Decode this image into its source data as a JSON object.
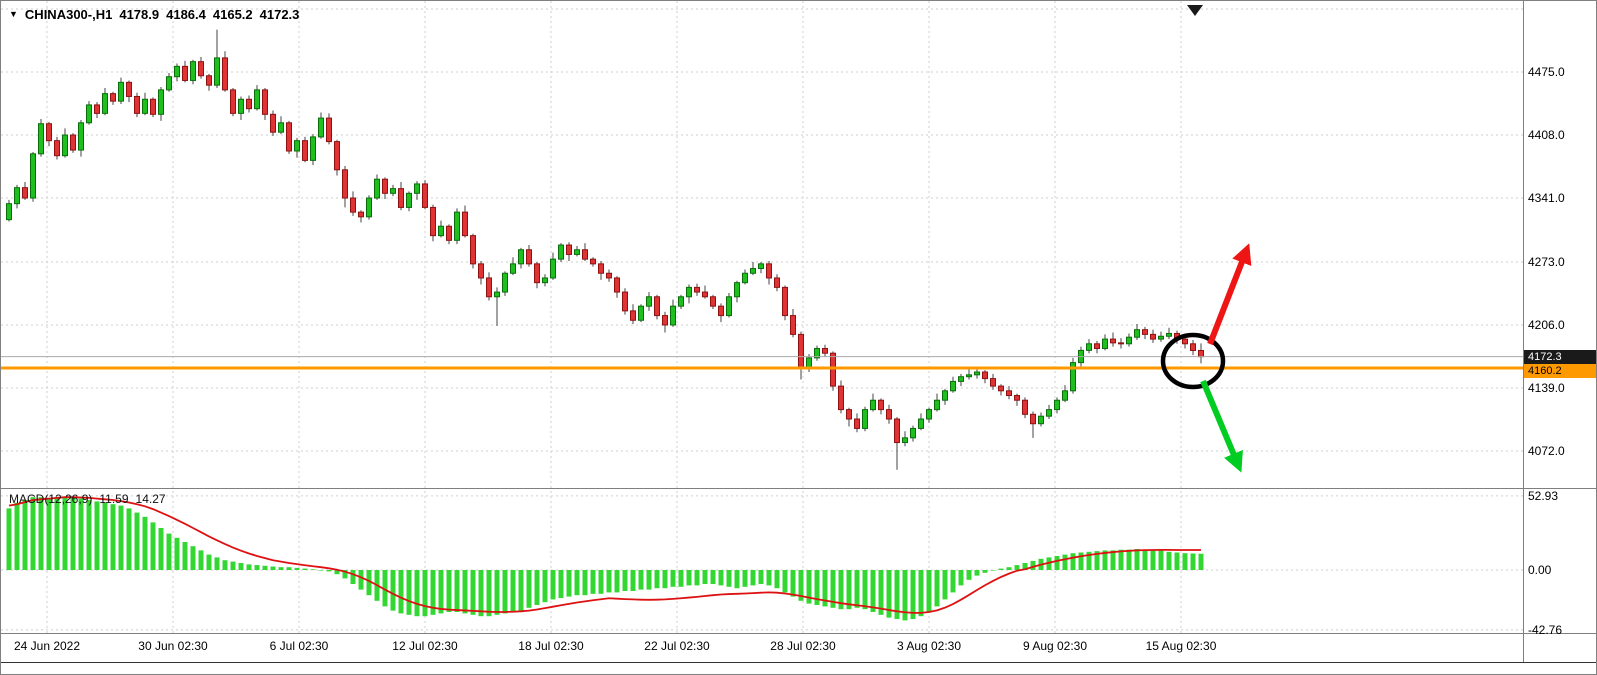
{
  "window": {
    "background": "#ffffff"
  },
  "header": {
    "menu_icon": "▼",
    "symbol": "CHINA300-,H1",
    "open": "4178.9",
    "high": "4186.4",
    "low": "4165.2",
    "close": "4172.3"
  },
  "macd_panel": {
    "label": "MACD(12,26,9)",
    "macd_value": "11.59",
    "signal_value": "14.27"
  },
  "colors": {
    "bull": "#0a6e0a",
    "bull_fill": "#1fbf1f",
    "bear": "#8f1111",
    "bear_fill": "#e03333",
    "wick": "#444444",
    "hist": "#33d633",
    "signal": "#dd1111",
    "grid": "#cfcfcf",
    "separator": "#7f7f7f",
    "orange_line": "#ff9900",
    "bid_line": "#aaaaaa",
    "badge_bg": "#1a1a1a",
    "badge_text": "#ffffff",
    "orange_badge_text": "#000000",
    "circle": "#000000",
    "arrow_up": "#ee1515",
    "arrow_down": "#00cc22"
  },
  "chart_data": {
    "type": "candlestick",
    "symbol": "CHINA300-",
    "timeframe": "H1",
    "last_ohlc": {
      "open": 4178.9,
      "high": 4186.4,
      "low": 4165.2,
      "close": 4172.3
    },
    "y_axis": {
      "tick_labels": [
        "4475.0",
        "4408.0",
        "4341.0",
        "4273.0",
        "4206.0",
        "4139.0",
        "4072.0"
      ],
      "ticks": [
        4475,
        4408,
        4341,
        4273,
        4206,
        4139,
        4072
      ],
      "unlabeled_grid": [
        4542
      ],
      "current_price": 4172.3,
      "current_price_label": "4172.3",
      "orange_level": 4160.2,
      "orange_level_label": "4160.2"
    },
    "x_axis": {
      "ticks": [
        "24 Jun 2022",
        "30 Jun 02:30",
        "6 Jul 02:30",
        "12 Jul 02:30",
        "18 Jul 02:30",
        "22 Jul 02:30",
        "28 Jul 02:30",
        "3 Aug 02:30",
        "9 Aug 02:30",
        "15 Aug 02:30"
      ]
    },
    "candles": [
      [
        4318,
        4339,
        4316,
        4335
      ],
      [
        4335,
        4355,
        4330,
        4352
      ],
      [
        4352,
        4358,
        4339,
        4341
      ],
      [
        4341,
        4390,
        4337,
        4388
      ],
      [
        4388,
        4425,
        4385,
        4420
      ],
      [
        4420,
        4422,
        4396,
        4402
      ],
      [
        4402,
        4406,
        4382,
        4386
      ],
      [
        4386,
        4415,
        4384,
        4408
      ],
      [
        4408,
        4410,
        4389,
        4392
      ],
      [
        4392,
        4424,
        4385,
        4421
      ],
      [
        4421,
        4444,
        4419,
        4440
      ],
      [
        4440,
        4443,
        4426,
        4431
      ],
      [
        4431,
        4458,
        4429,
        4452
      ],
      [
        4452,
        4454,
        4440,
        4444
      ],
      [
        4444,
        4469,
        4441,
        4464
      ],
      [
        4464,
        4466,
        4443,
        4449
      ],
      [
        4449,
        4453,
        4427,
        4431
      ],
      [
        4431,
        4453,
        4429,
        4446
      ],
      [
        4446,
        4448,
        4427,
        4430
      ],
      [
        4430,
        4459,
        4423,
        4456
      ],
      [
        4456,
        4474,
        4454,
        4470
      ],
      [
        4470,
        4484,
        4465,
        4481
      ],
      [
        4481,
        4487,
        4464,
        4466
      ],
      [
        4466,
        4488,
        4462,
        4486
      ],
      [
        4486,
        4491,
        4468,
        4471
      ],
      [
        4471,
        4473,
        4455,
        4461
      ],
      [
        4461,
        4520,
        4458,
        4490
      ],
      [
        4490,
        4497,
        4454,
        4456
      ],
      [
        4456,
        4458,
        4428,
        4431
      ],
      [
        4431,
        4449,
        4424,
        4446
      ],
      [
        4446,
        4450,
        4432,
        4436
      ],
      [
        4436,
        4461,
        4434,
        4456
      ],
      [
        4456,
        4458,
        4424,
        4430
      ],
      [
        4430,
        4434,
        4407,
        4411
      ],
      [
        4411,
        4428,
        4409,
        4421
      ],
      [
        4421,
        4423,
        4388,
        4391
      ],
      [
        4391,
        4405,
        4384,
        4402
      ],
      [
        4402,
        4406,
        4379,
        4381
      ],
      [
        4381,
        4409,
        4376,
        4406
      ],
      [
        4406,
        4432,
        4404,
        4426
      ],
      [
        4426,
        4431,
        4398,
        4401
      ],
      [
        4401,
        4403,
        4365,
        4371
      ],
      [
        4371,
        4375,
        4331,
        4341
      ],
      [
        4341,
        4348,
        4322,
        4326
      ],
      [
        4326,
        4328,
        4315,
        4321
      ],
      [
        4321,
        4344,
        4318,
        4341
      ],
      [
        4341,
        4366,
        4339,
        4361
      ],
      [
        4361,
        4363,
        4340,
        4346
      ],
      [
        4346,
        4355,
        4343,
        4351
      ],
      [
        4351,
        4358,
        4328,
        4331
      ],
      [
        4331,
        4348,
        4327,
        4346
      ],
      [
        4346,
        4359,
        4339,
        4356
      ],
      [
        4356,
        4360,
        4329,
        4331
      ],
      [
        4331,
        4334,
        4295,
        4301
      ],
      [
        4301,
        4317,
        4299,
        4311
      ],
      [
        4311,
        4313,
        4292,
        4296
      ],
      [
        4296,
        4330,
        4292,
        4326
      ],
      [
        4326,
        4333,
        4299,
        4301
      ],
      [
        4301,
        4303,
        4266,
        4271
      ],
      [
        4271,
        4274,
        4249,
        4256
      ],
      [
        4256,
        4262,
        4232,
        4236
      ],
      [
        4236,
        4246,
        4205,
        4241
      ],
      [
        4241,
        4263,
        4237,
        4261
      ],
      [
        4261,
        4278,
        4259,
        4271
      ],
      [
        4271,
        4288,
        4266,
        4286
      ],
      [
        4286,
        4291,
        4268,
        4271
      ],
      [
        4271,
        4273,
        4245,
        4251
      ],
      [
        4251,
        4260,
        4247,
        4256
      ],
      [
        4256,
        4283,
        4254,
        4276
      ],
      [
        4276,
        4293,
        4273,
        4291
      ],
      [
        4291,
        4294,
        4274,
        4281
      ],
      [
        4281,
        4290,
        4279,
        4286
      ],
      [
        4286,
        4293,
        4274,
        4276
      ],
      [
        4276,
        4278,
        4268,
        4271
      ],
      [
        4271,
        4274,
        4254,
        4261
      ],
      [
        4261,
        4265,
        4252,
        4256
      ],
      [
        4256,
        4258,
        4235,
        4241
      ],
      [
        4241,
        4245,
        4217,
        4221
      ],
      [
        4221,
        4228,
        4207,
        4211
      ],
      [
        4211,
        4228,
        4209,
        4226
      ],
      [
        4226,
        4241,
        4221,
        4236
      ],
      [
        4236,
        4238,
        4212,
        4216
      ],
      [
        4216,
        4220,
        4198,
        4206
      ],
      [
        4206,
        4233,
        4204,
        4226
      ],
      [
        4226,
        4238,
        4223,
        4236
      ],
      [
        4236,
        4249,
        4229,
        4246
      ],
      [
        4246,
        4250,
        4237,
        4241
      ],
      [
        4241,
        4248,
        4234,
        4236
      ],
      [
        4236,
        4238,
        4223,
        4226
      ],
      [
        4226,
        4229,
        4209,
        4216
      ],
      [
        4216,
        4240,
        4214,
        4236
      ],
      [
        4236,
        4253,
        4230,
        4251
      ],
      [
        4251,
        4265,
        4249,
        4261
      ],
      [
        4261,
        4273,
        4259,
        4266
      ],
      [
        4266,
        4273,
        4261,
        4271
      ],
      [
        4271,
        4274,
        4249,
        4256
      ],
      [
        4256,
        4260,
        4242,
        4246
      ],
      [
        4246,
        4248,
        4211,
        4216
      ],
      [
        4216,
        4223,
        4193,
        4196
      ],
      [
        4196,
        4199,
        4148,
        4161
      ],
      [
        4161,
        4175,
        4156,
        4171
      ],
      [
        4171,
        4184,
        4168,
        4181
      ],
      [
        4181,
        4185,
        4172,
        4176
      ],
      [
        4176,
        4178,
        4136,
        4141
      ],
      [
        4141,
        4147,
        4112,
        4116
      ],
      [
        4116,
        4118,
        4098,
        4106
      ],
      [
        4106,
        4112,
        4092,
        4096
      ],
      [
        4096,
        4119,
        4093,
        4116
      ],
      [
        4116,
        4133,
        4114,
        4126
      ],
      [
        4126,
        4128,
        4111,
        4116
      ],
      [
        4116,
        4121,
        4101,
        4106
      ],
      [
        4106,
        4108,
        4052,
        4081
      ],
      [
        4081,
        4093,
        4077,
        4086
      ],
      [
        4086,
        4099,
        4082,
        4096
      ],
      [
        4096,
        4112,
        4094,
        4106
      ],
      [
        4106,
        4118,
        4102,
        4116
      ],
      [
        4116,
        4133,
        4114,
        4126
      ],
      [
        4126,
        4138,
        4121,
        4136
      ],
      [
        4136,
        4151,
        4134,
        4146
      ],
      [
        4146,
        4154,
        4141,
        4151
      ],
      [
        4151,
        4159,
        4148,
        4153
      ],
      [
        4153,
        4159,
        4149,
        4156
      ],
      [
        4156,
        4158,
        4144,
        4149
      ],
      [
        4149,
        4154,
        4137,
        4141
      ],
      [
        4141,
        4143,
        4131,
        4136
      ],
      [
        4136,
        4141,
        4127,
        4131
      ],
      [
        4131,
        4133,
        4120,
        4126
      ],
      [
        4126,
        4129,
        4107,
        4111
      ],
      [
        4111,
        4114,
        4086,
        4101
      ],
      [
        4101,
        4113,
        4098,
        4109
      ],
      [
        4109,
        4121,
        4106,
        4116
      ],
      [
        4116,
        4129,
        4112,
        4126
      ],
      [
        4126,
        4142,
        4124,
        4136
      ],
      [
        4136,
        4171,
        4133,
        4166
      ],
      [
        4166,
        4183,
        4162,
        4179
      ],
      [
        4179,
        4191,
        4176,
        4186
      ],
      [
        4186,
        4189,
        4176,
        4181
      ],
      [
        4181,
        4196,
        4179,
        4191
      ],
      [
        4191,
        4198,
        4183,
        4187
      ],
      [
        4187,
        4192,
        4181,
        4186
      ],
      [
        4186,
        4197,
        4183,
        4193
      ],
      [
        4193,
        4207,
        4190,
        4201
      ],
      [
        4201,
        4204,
        4191,
        4196
      ],
      [
        4196,
        4201,
        4187,
        4191
      ],
      [
        4191,
        4199,
        4188,
        4194
      ],
      [
        4194,
        4203,
        4191,
        4197
      ],
      [
        4197,
        4200,
        4186,
        4191
      ],
      [
        4191,
        4194,
        4181,
        4186
      ],
      [
        4186,
        4190,
        4174,
        4178.9
      ],
      [
        4178.9,
        4186.4,
        4165.2,
        4172.3
      ]
    ],
    "macd": {
      "params": [
        12,
        26,
        9
      ],
      "axis_labels": [
        "52.93",
        "0.00",
        "-42.76"
      ],
      "grid": [
        52.93,
        0,
        -42.76
      ],
      "last_macd": 11.59,
      "last_signal": 14.27,
      "histogram": [
        44,
        48,
        50,
        52,
        52,
        51,
        52,
        52.5,
        52,
        51,
        50,
        49,
        48,
        47,
        46,
        44,
        41,
        38,
        34,
        30,
        26,
        23,
        20,
        17,
        14,
        11,
        9,
        7,
        6,
        5,
        4,
        3.5,
        3,
        2.5,
        2,
        2,
        1.5,
        1,
        0.5,
        0,
        -1,
        -3,
        -6,
        -10,
        -14,
        -18,
        -22,
        -26,
        -29,
        -31,
        -32,
        -33,
        -33,
        -32,
        -31,
        -30,
        -30,
        -31,
        -32,
        -33,
        -33,
        -32,
        -31,
        -30,
        -29,
        -27,
        -25,
        -23,
        -21,
        -20,
        -19,
        -18,
        -18,
        -17,
        -17,
        -16,
        -16,
        -15,
        -15,
        -14,
        -14,
        -13,
        -13,
        -12,
        -12,
        -11,
        -11,
        -10,
        -10,
        -11,
        -12,
        -13,
        -12,
        -11,
        -10,
        -11,
        -13,
        -16,
        -19,
        -22,
        -24,
        -25,
        -26,
        -27,
        -28,
        -28,
        -27,
        -28,
        -30,
        -32,
        -34,
        -35,
        -36,
        -35,
        -33,
        -30,
        -26,
        -21,
        -16,
        -11,
        -7,
        -4,
        -2,
        0,
        1,
        2,
        3.5,
        5,
        6.5,
        8,
        9,
        10,
        11,
        12,
        12.5,
        13,
        13.5,
        14,
        14,
        14.5,
        14.5,
        15,
        14.5,
        14,
        14,
        13,
        12.5,
        12,
        11.8,
        11.59
      ],
      "signal": [
        46,
        47,
        48.5,
        50,
        50.5,
        51,
        51.5,
        52,
        52,
        51.8,
        51.5,
        51,
        50.5,
        50,
        49.2,
        48.2,
        47,
        45.5,
        43.5,
        41,
        38.5,
        35.8,
        33,
        30,
        27,
        24,
        21.2,
        18.5,
        16,
        13.8,
        11.8,
        10,
        8.5,
        7,
        6,
        5,
        4.2,
        3.4,
        2.7,
        2,
        1.2,
        0.2,
        -1.2,
        -3,
        -5.2,
        -7.8,
        -10.8,
        -14,
        -17,
        -19.8,
        -22.2,
        -24.2,
        -25.8,
        -27,
        -27.8,
        -28.3,
        -28.6,
        -28.9,
        -29.2,
        -29.5,
        -29.8,
        -30,
        -30,
        -29.8,
        -29.5,
        -29,
        -28.2,
        -27.2,
        -26.2,
        -25.2,
        -24.2,
        -23.2,
        -22.4,
        -21.6,
        -20.9,
        -20.2,
        -20.5,
        -20.8,
        -21,
        -21.2,
        -21.3,
        -21.2,
        -21,
        -20.6,
        -20.2,
        -19.7,
        -19.2,
        -18.6,
        -18,
        -17.5,
        -17.2,
        -17,
        -16.8,
        -16.5,
        -16.2,
        -16,
        -16.2,
        -16.8,
        -17.6,
        -18.6,
        -19.7,
        -20.8,
        -21.8,
        -22.8,
        -23.7,
        -24.5,
        -25.2,
        -25.9,
        -26.7,
        -27.6,
        -28.6,
        -29.5,
        -30.2,
        -30.6,
        -30.6,
        -30,
        -28.8,
        -26.9,
        -24.3,
        -21.2,
        -17.8,
        -14.3,
        -10.9,
        -7.8,
        -5,
        -2.6,
        -0.5,
        0.5,
        2.2,
        3.8,
        5.2,
        6.5,
        7.7,
        8.8,
        9.8,
        10.7,
        11.5,
        12.2,
        12.8,
        13.3,
        13.7,
        14,
        14.2,
        14.3,
        14.35,
        14.35,
        14.3,
        14.3,
        14.28,
        14.27
      ]
    },
    "annotations": [
      {
        "type": "ellipse",
        "label": "highlight-circle",
        "color": "#000000"
      },
      {
        "type": "arrow-up",
        "label": "bullish-scenario-arrow",
        "color": "#ee1515"
      },
      {
        "type": "arrow-down",
        "label": "bearish-scenario-arrow",
        "color": "#00cc22"
      }
    ]
  }
}
